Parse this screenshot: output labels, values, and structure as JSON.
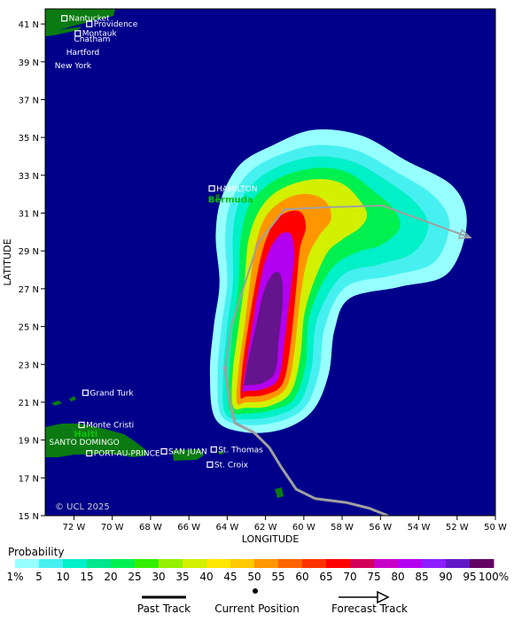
{
  "map": {
    "x_axis": {
      "title": "LONGITUDE",
      "range": [
        -73.5,
        -50
      ],
      "ticks": [
        {
          "value": -72,
          "label": "72 W"
        },
        {
          "value": -70,
          "label": "70 W"
        },
        {
          "value": -68,
          "label": "68 W"
        },
        {
          "value": -66,
          "label": "66 W"
        },
        {
          "value": -64,
          "label": "64 W"
        },
        {
          "value": -62,
          "label": "62 W"
        },
        {
          "value": -60,
          "label": "60 W"
        },
        {
          "value": -58,
          "label": "58 W"
        },
        {
          "value": -56,
          "label": "56 W"
        },
        {
          "value": -54,
          "label": "54 W"
        },
        {
          "value": -52,
          "label": "52 W"
        },
        {
          "value": -50,
          "label": "50 W"
        }
      ]
    },
    "y_axis": {
      "title": "LATITUDE",
      "range": [
        15,
        41.8
      ],
      "ticks": [
        {
          "value": 41,
          "label": "41 N"
        },
        {
          "value": 39,
          "label": "39 N"
        },
        {
          "value": 37,
          "label": "37 N"
        },
        {
          "value": 35,
          "label": "35 N"
        },
        {
          "value": 33,
          "label": "33 N"
        },
        {
          "value": 31,
          "label": "31 N"
        },
        {
          "value": 29,
          "label": "29 N"
        },
        {
          "value": 27,
          "label": "27 N"
        },
        {
          "value": 25,
          "label": "25 N"
        },
        {
          "value": 23,
          "label": "23 N"
        },
        {
          "value": 21,
          "label": "21 N"
        },
        {
          "value": 19,
          "label": "19 N"
        },
        {
          "value": 17,
          "label": "17 N"
        },
        {
          "value": 15,
          "label": "15 N"
        }
      ]
    },
    "ocean_color": "#00008b",
    "land_color": "#0b7a12",
    "copyright": "© UCL 2025",
    "places": [
      {
        "name": "Nantucket",
        "lon": -72.5,
        "lat": 41.3,
        "marker": true
      },
      {
        "name": "Providence",
        "lon": -71.2,
        "lat": 41.0,
        "marker": true
      },
      {
        "name": "Montauk",
        "lon": -71.8,
        "lat": 40.5,
        "marker": true
      },
      {
        "name": "Chatham",
        "lon": -72.0,
        "lat": 40.2,
        "marker": false
      },
      {
        "name": "Hartford",
        "lon": -72.4,
        "lat": 39.5,
        "marker": false
      },
      {
        "name": "New York",
        "lon": -73.0,
        "lat": 38.8,
        "marker": false
      },
      {
        "name": "HAMILTON",
        "lon": -64.8,
        "lat": 32.3,
        "marker": true
      },
      {
        "name": "Bermuda",
        "lon": -65.0,
        "lat": 31.7,
        "marker": false,
        "style": "green"
      },
      {
        "name": "Grand Turk",
        "lon": -71.4,
        "lat": 21.5,
        "marker": true
      },
      {
        "name": "Monte Cristi",
        "lon": -71.6,
        "lat": 19.8,
        "marker": true
      },
      {
        "name": "Haiti",
        "lon": -72.0,
        "lat": 19.3,
        "marker": false,
        "style": "green"
      },
      {
        "name": "SANTO DOMINGO",
        "lon": -73.3,
        "lat": 18.9,
        "marker": false
      },
      {
        "name": "PORT-AU-PRINCE",
        "lon": -71.2,
        "lat": 18.3,
        "marker": true
      },
      {
        "name": "SAN JUAN",
        "lon": -67.3,
        "lat": 18.4,
        "marker": true
      },
      {
        "name": "St. Thomas",
        "lon": -64.7,
        "lat": 18.5,
        "marker": true
      },
      {
        "name": "St. Croix",
        "lon": -64.9,
        "lat": 17.7,
        "marker": true
      }
    ],
    "past_track": [
      {
        "lon": -64.1,
        "lat": 22.8
      },
      {
        "lon": -63.9,
        "lat": 21.2
      },
      {
        "lon": -63.6,
        "lat": 19.9
      },
      {
        "lon": -62.6,
        "lat": 19.4
      },
      {
        "lon": -61.8,
        "lat": 18.6
      },
      {
        "lon": -61.2,
        "lat": 17.6
      },
      {
        "lon": -60.4,
        "lat": 16.4
      },
      {
        "lon": -59.4,
        "lat": 15.9
      },
      {
        "lon": -57.8,
        "lat": 15.7
      },
      {
        "lon": -56.6,
        "lat": 15.4
      },
      {
        "lon": -55.6,
        "lat": 15.0
      }
    ],
    "current_position": {
      "lon": -64.1,
      "lat": 22.8
    },
    "forecast_track": [
      {
        "lon": -64.1,
        "lat": 22.8
      },
      {
        "lon": -63.8,
        "lat": 25.0
      },
      {
        "lon": -62.4,
        "lat": 29.4
      },
      {
        "lon": -61.0,
        "lat": 31.2
      },
      {
        "lon": -59.0,
        "lat": 31.3
      },
      {
        "lon": -55.9,
        "lat": 31.4
      },
      {
        "lon": -51.3,
        "lat": 29.7
      }
    ],
    "probability_regions": [
      {
        "level": 1,
        "points": [
          [
            -64.6,
            20.1
          ],
          [
            -64.9,
            22.5
          ],
          [
            -64.7,
            25.0
          ],
          [
            -64.4,
            27.3
          ],
          [
            -64.6,
            29.8
          ],
          [
            -64.3,
            31.8
          ],
          [
            -63.3,
            33.6
          ],
          [
            -61.6,
            34.6
          ],
          [
            -59.5,
            35.4
          ],
          [
            -57.0,
            35.1
          ],
          [
            -54.7,
            33.8
          ],
          [
            -52.2,
            32.4
          ],
          [
            -51.5,
            30.4
          ],
          [
            -52.5,
            27.8
          ],
          [
            -55.0,
            27.1
          ],
          [
            -57.6,
            26.5
          ],
          [
            -58.4,
            24.8
          ],
          [
            -58.7,
            22.5
          ],
          [
            -59.5,
            20.6
          ],
          [
            -61.0,
            19.6
          ],
          [
            -63.0,
            19.4
          ]
        ]
      },
      {
        "level": 5,
        "points": [
          [
            -64.3,
            20.3
          ],
          [
            -64.5,
            22.5
          ],
          [
            -64.3,
            25.0
          ],
          [
            -64.0,
            27.3
          ],
          [
            -64.1,
            29.8
          ],
          [
            -63.8,
            31.6
          ],
          [
            -62.8,
            33.2
          ],
          [
            -61.2,
            34.1
          ],
          [
            -59.3,
            34.6
          ],
          [
            -57.2,
            34.3
          ],
          [
            -55.2,
            33.2
          ],
          [
            -53.2,
            31.9
          ],
          [
            -52.4,
            30.4
          ],
          [
            -53.2,
            28.4
          ],
          [
            -55.4,
            27.7
          ],
          [
            -57.8,
            27.1
          ],
          [
            -58.9,
            25.0
          ],
          [
            -59.2,
            22.6
          ],
          [
            -59.9,
            20.8
          ],
          [
            -61.2,
            20.0
          ],
          [
            -63.0,
            19.8
          ]
        ]
      },
      {
        "level": 10,
        "points": [
          [
            -64.1,
            20.4
          ],
          [
            -64.2,
            22.5
          ],
          [
            -64.0,
            25.0
          ],
          [
            -63.7,
            27.3
          ],
          [
            -63.7,
            29.8
          ],
          [
            -63.4,
            31.5
          ],
          [
            -62.4,
            32.8
          ],
          [
            -61.0,
            33.6
          ],
          [
            -59.2,
            34.0
          ],
          [
            -57.4,
            33.7
          ],
          [
            -55.8,
            32.8
          ],
          [
            -54.2,
            31.6
          ],
          [
            -53.5,
            30.3
          ],
          [
            -54.3,
            28.9
          ],
          [
            -56.0,
            28.3
          ],
          [
            -58.0,
            27.7
          ],
          [
            -59.3,
            25.4
          ],
          [
            -59.6,
            22.8
          ],
          [
            -60.2,
            21.0
          ],
          [
            -61.4,
            20.3
          ],
          [
            -63.0,
            20.1
          ]
        ]
      },
      {
        "level": 20,
        "points": [
          [
            -63.9,
            20.6
          ],
          [
            -63.9,
            22.6
          ],
          [
            -63.7,
            25.0
          ],
          [
            -63.4,
            27.3
          ],
          [
            -63.3,
            29.6
          ],
          [
            -62.9,
            31.3
          ],
          [
            -62.0,
            32.4
          ],
          [
            -60.7,
            33.1
          ],
          [
            -59.0,
            33.4
          ],
          [
            -57.6,
            33.1
          ],
          [
            -56.4,
            32.2
          ],
          [
            -55.3,
            31.2
          ],
          [
            -55.0,
            30.2
          ],
          [
            -56.0,
            29.3
          ],
          [
            -57.3,
            28.9
          ],
          [
            -58.6,
            28.0
          ],
          [
            -59.7,
            25.6
          ],
          [
            -59.9,
            23.0
          ],
          [
            -60.5,
            21.2
          ],
          [
            -61.6,
            20.6
          ],
          [
            -63.0,
            20.4
          ]
        ]
      },
      {
        "level": 35,
        "points": [
          [
            -63.7,
            20.8
          ],
          [
            -63.7,
            22.7
          ],
          [
            -63.4,
            25.0
          ],
          [
            -63.1,
            27.3
          ],
          [
            -62.9,
            29.5
          ],
          [
            -62.4,
            31.0
          ],
          [
            -61.6,
            32.0
          ],
          [
            -60.4,
            32.6
          ],
          [
            -59.0,
            32.8
          ],
          [
            -57.9,
            32.5
          ],
          [
            -57.1,
            31.7
          ],
          [
            -56.7,
            30.9
          ],
          [
            -57.1,
            30.2
          ],
          [
            -58.0,
            29.6
          ],
          [
            -58.9,
            28.7
          ],
          [
            -59.9,
            26.0
          ],
          [
            -60.2,
            23.3
          ],
          [
            -60.7,
            21.5
          ],
          [
            -61.8,
            20.8
          ],
          [
            -63.0,
            20.7
          ]
        ]
      },
      {
        "level": 50,
        "points": [
          [
            -63.5,
            21.0
          ],
          [
            -63.4,
            22.8
          ],
          [
            -63.1,
            25.0
          ],
          [
            -62.8,
            27.4
          ],
          [
            -62.5,
            29.4
          ],
          [
            -62.0,
            30.8
          ],
          [
            -61.2,
            31.6
          ],
          [
            -60.2,
            32.0
          ],
          [
            -59.3,
            31.9
          ],
          [
            -58.7,
            31.4
          ],
          [
            -58.6,
            30.6
          ],
          [
            -59.2,
            29.8
          ],
          [
            -59.8,
            28.6
          ],
          [
            -60.2,
            26.4
          ],
          [
            -60.5,
            23.6
          ],
          [
            -60.9,
            21.8
          ],
          [
            -61.9,
            21.1
          ],
          [
            -63.0,
            21.0
          ]
        ]
      },
      {
        "level": 65,
        "points": [
          [
            -63.3,
            21.3
          ],
          [
            -63.2,
            22.9
          ],
          [
            -62.9,
            25.0
          ],
          [
            -62.5,
            27.4
          ],
          [
            -62.1,
            29.2
          ],
          [
            -61.5,
            30.6
          ],
          [
            -60.7,
            31.1
          ],
          [
            -60.1,
            31.0
          ],
          [
            -59.9,
            30.2
          ],
          [
            -60.2,
            29.1
          ],
          [
            -60.4,
            27.0
          ],
          [
            -60.7,
            24.0
          ],
          [
            -61.1,
            22.0
          ],
          [
            -62.0,
            21.4
          ],
          [
            -63.0,
            21.3
          ]
        ]
      },
      {
        "level": 80,
        "points": [
          [
            -63.2,
            21.6
          ],
          [
            -63.0,
            23.0
          ],
          [
            -62.7,
            25.0
          ],
          [
            -62.3,
            27.3
          ],
          [
            -61.9,
            28.8
          ],
          [
            -61.3,
            29.8
          ],
          [
            -60.7,
            29.9
          ],
          [
            -60.5,
            28.8
          ],
          [
            -60.7,
            26.8
          ],
          [
            -61.0,
            24.3
          ],
          [
            -61.3,
            22.3
          ],
          [
            -62.1,
            21.7
          ],
          [
            -63.0,
            21.6
          ]
        ]
      },
      {
        "level": 95,
        "points": [
          [
            -63.1,
            21.9
          ],
          [
            -62.9,
            23.2
          ],
          [
            -62.5,
            25.0
          ],
          [
            -62.1,
            26.8
          ],
          [
            -61.6,
            27.8
          ],
          [
            -61.2,
            27.7
          ],
          [
            -61.1,
            26.4
          ],
          [
            -61.3,
            24.4
          ],
          [
            -61.5,
            22.6
          ],
          [
            -62.2,
            22.0
          ],
          [
            -63.0,
            21.9
          ]
        ]
      }
    ]
  },
  "legend": {
    "title": "Probability",
    "levels": [
      {
        "label": "1%",
        "color": "#96ffff"
      },
      {
        "label": "5",
        "color": "#46f0f0"
      },
      {
        "label": "10",
        "color": "#00f0c8"
      },
      {
        "label": "15",
        "color": "#00e68c"
      },
      {
        "label": "20",
        "color": "#00f050"
      },
      {
        "label": "25",
        "color": "#32f000"
      },
      {
        "label": "30",
        "color": "#96f000"
      },
      {
        "label": "35",
        "color": "#d2f000"
      },
      {
        "label": "40",
        "color": "#ffe600"
      },
      {
        "label": "45",
        "color": "#ffc800"
      },
      {
        "label": "50",
        "color": "#ff9600"
      },
      {
        "label": "55",
        "color": "#ff6400"
      },
      {
        "label": "60",
        "color": "#ff3200"
      },
      {
        "label": "65",
        "color": "#ff0000"
      },
      {
        "label": "70",
        "color": "#d2005a"
      },
      {
        "label": "75",
        "color": "#c800c8"
      },
      {
        "label": "80",
        "color": "#b400f0"
      },
      {
        "label": "85",
        "color": "#8c1eff"
      },
      {
        "label": "90",
        "color": "#6419c8"
      },
      {
        "label": "95",
        "color": "#64148c"
      },
      {
        "label": "100%",
        "color": "#640064"
      }
    ],
    "past_track_label": "Past Track",
    "current_position_label": "Current Position",
    "forecast_track_label": "Forecast Track"
  }
}
